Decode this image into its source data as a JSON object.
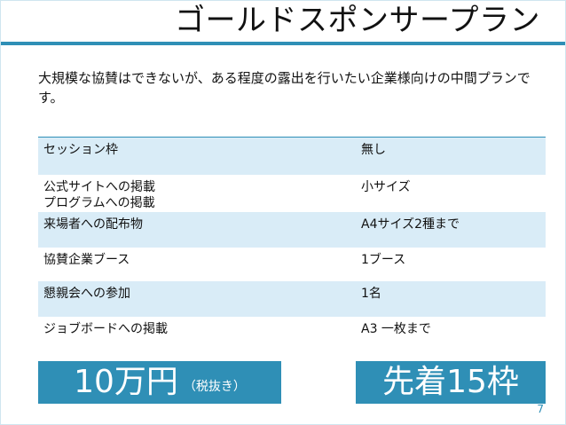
{
  "slide": {
    "title": "ゴールドスポンサープラン",
    "intro": "大規模な協賛はできないが、ある程度の露出を行いたい企業様向けの中間プランです。",
    "table": {
      "rows": [
        {
          "left": "セッション枠",
          "right": "無し"
        },
        {
          "left": "公式サイトへの掲載\nプログラムへの掲載",
          "right": "小サイズ"
        },
        {
          "left": "来場者への配布物",
          "right": "A4サイズ2種まで"
        },
        {
          "left": "協賛企業ブース",
          "right": "1ブース"
        },
        {
          "left": "懇親会への参加",
          "right": "1名"
        },
        {
          "left": "ジョブボードへの掲載",
          "right": "A3 一枚まで"
        }
      ]
    },
    "price": {
      "amount": "10万円",
      "note": "（税抜き）"
    },
    "limit": "先着15枠",
    "page_number": "7"
  },
  "colors": {
    "accent": "#2f8fb6",
    "row_shade": "#d9ecf7",
    "text": "#111111",
    "white": "#ffffff"
  }
}
